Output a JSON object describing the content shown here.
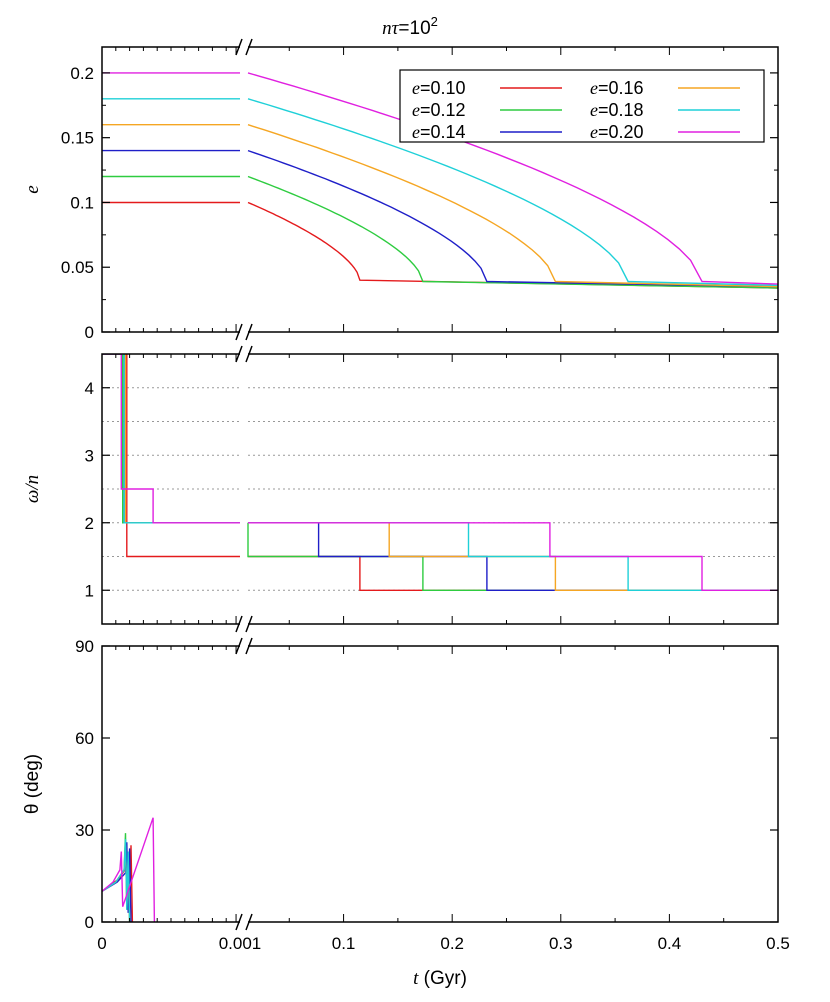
{
  "figure": {
    "title_math": "nτ",
    "title_eq": "=10",
    "title_exp": "2",
    "xlabel_var": "t",
    "xlabel_unit": " (Gyr)",
    "colors": {
      "0.10": "#e41a1c",
      "0.12": "#2ecc40",
      "0.14": "#1f1fc8",
      "0.16": "#f5a623",
      "0.18": "#1fd0d8",
      "0.20": "#e020e0"
    }
  },
  "chart_data": [
    {
      "type": "line",
      "panel": "top",
      "ylabel": "e",
      "ylim": [
        0,
        0.22
      ],
      "yticks": [
        "0",
        "0.05",
        "0.1",
        "0.15",
        "0.2"
      ],
      "xticks_left": [
        "0",
        "0.001"
      ],
      "xticks_right": [
        "0.1",
        "0.2",
        "0.3",
        "0.4",
        "0.5"
      ],
      "x_break_after": 0.001,
      "legend_position": "top-right",
      "legend": [
        "e=0.10",
        "e=0.12",
        "e=0.14",
        "e=0.16",
        "e=0.18",
        "e=0.20"
      ],
      "series": [
        {
          "name": "e=0.10",
          "e0": 0.1,
          "t_drop": 0.115,
          "e_after": 0.04,
          "e_end": 0.034
        },
        {
          "name": "e=0.12",
          "e0": 0.12,
          "t_drop": 0.173,
          "e_after": 0.039,
          "e_end": 0.034
        },
        {
          "name": "e=0.14",
          "e0": 0.14,
          "t_drop": 0.232,
          "e_after": 0.039,
          "e_end": 0.035
        },
        {
          "name": "e=0.16",
          "e0": 0.16,
          "t_drop": 0.295,
          "e_after": 0.039,
          "e_end": 0.035
        },
        {
          "name": "e=0.18",
          "e0": 0.18,
          "t_drop": 0.362,
          "e_after": 0.039,
          "e_end": 0.036
        },
        {
          "name": "e=0.20",
          "e0": 0.2,
          "t_drop": 0.43,
          "e_after": 0.039,
          "e_end": 0.037
        }
      ]
    },
    {
      "type": "line",
      "panel": "middle",
      "ylabel": "ω/n",
      "ylim": [
        0.5,
        4.5
      ],
      "yticks": [
        "1",
        "2",
        "3",
        "4"
      ],
      "grid": "dotted-horizontal",
      "series": [
        {
          "name": "e=0.10",
          "steps": [
            [
              0.0,
              4.5
            ],
            [
              0.00018,
              1.5
            ],
            [
              0.115,
              1.0
            ],
            [
              0.5,
              1.0
            ]
          ]
        },
        {
          "name": "e=0.12",
          "steps": [
            [
              0.0,
              4.5
            ],
            [
              0.00015,
              2.0
            ],
            [
              0.012,
              1.5
            ],
            [
              0.173,
              1.0
            ],
            [
              0.5,
              1.0
            ]
          ]
        },
        {
          "name": "e=0.14",
          "steps": [
            [
              0.0,
              4.5
            ],
            [
              0.00016,
              2.0
            ],
            [
              0.077,
              1.5
            ],
            [
              0.232,
              1.0
            ],
            [
              0.5,
              1.0
            ]
          ]
        },
        {
          "name": "e=0.16",
          "steps": [
            [
              0.0,
              4.5
            ],
            [
              0.00017,
              2.0
            ],
            [
              0.142,
              1.5
            ],
            [
              0.295,
              1.0
            ],
            [
              0.5,
              1.0
            ]
          ]
        },
        {
          "name": "e=0.18",
          "steps": [
            [
              0.0,
              4.5
            ],
            [
              0.00016,
              2.0
            ],
            [
              0.215,
              1.5
            ],
            [
              0.362,
              1.0
            ],
            [
              0.5,
              1.0
            ]
          ]
        },
        {
          "name": "e=0.20",
          "steps": [
            [
              0.0,
              4.5
            ],
            [
              0.00014,
              2.5
            ],
            [
              0.00037,
              2.0
            ],
            [
              0.29,
              1.5
            ],
            [
              0.43,
              1.0
            ],
            [
              0.5,
              1.0
            ]
          ]
        }
      ]
    },
    {
      "type": "line",
      "panel": "bottom",
      "ylabel": "θ (deg)",
      "ylim": [
        0,
        90
      ],
      "yticks": [
        "0",
        "30",
        "60",
        "90"
      ],
      "series": [
        {
          "name": "e=0.10",
          "points": [
            [
              0.0,
              10
            ],
            [
              0.00012,
              14
            ],
            [
              0.00018,
              18
            ],
            [
              0.00019,
              20
            ],
            [
              0.0002,
              5
            ],
            [
              0.00021,
              25
            ],
            [
              0.00022,
              0
            ]
          ]
        },
        {
          "name": "e=0.12",
          "points": [
            [
              0.0,
              10
            ],
            [
              0.0001,
              13
            ],
            [
              0.00016,
              17
            ],
            [
              0.00017,
              29
            ],
            [
              0.00018,
              4
            ],
            [
              0.00019,
              22
            ],
            [
              0.0002,
              0
            ]
          ]
        },
        {
          "name": "e=0.14",
          "points": [
            [
              0.0,
              10
            ],
            [
              0.00011,
              13
            ],
            [
              0.00017,
              16
            ],
            [
              0.00018,
              26
            ],
            [
              0.00019,
              3
            ],
            [
              0.0002,
              24
            ],
            [
              0.00021,
              0
            ]
          ]
        },
        {
          "name": "e=0.16",
          "points": [
            [
              0.0,
              10
            ],
            [
              0.0001,
              13
            ],
            [
              0.00016,
              17
            ],
            [
              0.00017,
              25
            ],
            [
              0.00018,
              5
            ],
            [
              0.00019,
              20
            ],
            [
              0.0002,
              0
            ]
          ]
        },
        {
          "name": "e=0.18",
          "points": [
            [
              0.0,
              10
            ],
            [
              0.0001,
              13
            ],
            [
              0.00016,
              17
            ],
            [
              0.00017,
              27
            ],
            [
              0.00018,
              4
            ],
            [
              0.00019,
              23
            ],
            [
              0.0002,
              0
            ]
          ]
        },
        {
          "name": "e=0.20",
          "points": [
            [
              0.0,
              10
            ],
            [
              8e-05,
              13
            ],
            [
              0.00013,
              17
            ],
            [
              0.00014,
              23
            ],
            [
              0.00015,
              5
            ],
            [
              0.00037,
              34
            ],
            [
              0.00038,
              0
            ]
          ]
        }
      ]
    }
  ]
}
